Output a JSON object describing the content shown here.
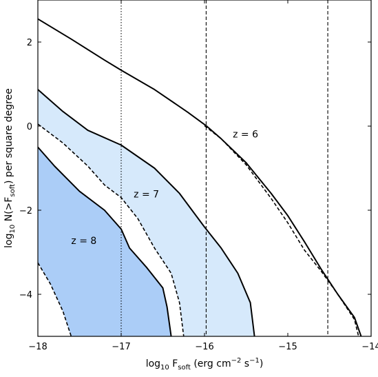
{
  "chart_data": {
    "type": "line",
    "xlim": [
      -18,
      -14
    ],
    "ylim": [
      -5,
      3
    ],
    "x_ticks": [
      -18,
      -17,
      -16,
      -15,
      -14
    ],
    "y_ticks": [
      -4,
      -2,
      0,
      2
    ],
    "xlabel": {
      "main": "log",
      "sub": "10",
      "rest": " F",
      "sub2": "soft",
      "units": "  (erg cm",
      "exp1": "−2",
      "units2": " s",
      "exp2": "−1",
      "close": ")"
    },
    "ylabel": {
      "main": "log",
      "sub": "10",
      "rest": " N(>F",
      "sub2": "soft",
      "close": ")  per square degree"
    },
    "vertical_lines": [
      {
        "x": -17.0,
        "style": "dotted"
      },
      {
        "x": -15.98,
        "style": "dashed"
      },
      {
        "x": -14.52,
        "style": "dashed"
      }
    ],
    "colors": {
      "light_fill": "#d6e9fb",
      "dark_fill": "#abcdf7",
      "curve": "#000000"
    },
    "series": [
      {
        "key": "z6_solid",
        "style": "solid",
        "points": [
          [
            -18,
            2.55
          ],
          [
            -17.6,
            2.07
          ],
          [
            -17.2,
            1.57
          ],
          [
            -17,
            1.33
          ],
          [
            -16.6,
            0.87
          ],
          [
            -16.2,
            0.33
          ],
          [
            -15.98,
            0.01
          ],
          [
            -15.8,
            -0.3
          ],
          [
            -15.5,
            -0.87
          ],
          [
            -15.2,
            -1.6
          ],
          [
            -15,
            -2.13
          ],
          [
            -14.8,
            -2.75
          ],
          [
            -14.6,
            -3.4
          ],
          [
            -14.4,
            -4.0
          ],
          [
            -14.2,
            -4.55
          ],
          [
            -14.12,
            -5.0
          ]
        ]
      },
      {
        "key": "z6_dashed",
        "style": "dashed",
        "points": [
          [
            -16.0,
            0.01
          ],
          [
            -15.8,
            -0.3
          ],
          [
            -15.5,
            -0.92
          ],
          [
            -15.2,
            -1.72
          ],
          [
            -15,
            -2.3
          ],
          [
            -14.8,
            -2.95
          ],
          [
            -14.6,
            -3.45
          ],
          [
            -14.4,
            -4.0
          ],
          [
            -14.2,
            -4.6
          ],
          [
            -14.15,
            -5.0
          ]
        ]
      },
      {
        "key": "z7_upper",
        "style": "solid",
        "points": [
          [
            -18,
            0.87
          ],
          [
            -17.7,
            0.35
          ],
          [
            -17.4,
            -0.1
          ],
          [
            -17,
            -0.45
          ],
          [
            -16.6,
            -1.0
          ],
          [
            -16.3,
            -1.6
          ],
          [
            -16,
            -2.4
          ],
          [
            -15.8,
            -2.9
          ],
          [
            -15.6,
            -3.5
          ],
          [
            -15.45,
            -4.2
          ],
          [
            -15.4,
            -5.0
          ]
        ]
      },
      {
        "key": "z7_lower",
        "style": "dashed",
        "points": [
          [
            -18,
            0.05
          ],
          [
            -17.7,
            -0.4
          ],
          [
            -17.4,
            -0.95
          ],
          [
            -17.2,
            -1.4
          ],
          [
            -17,
            -1.7
          ],
          [
            -16.8,
            -2.2
          ],
          [
            -16.6,
            -2.9
          ],
          [
            -16.4,
            -3.5
          ],
          [
            -16.3,
            -4.2
          ],
          [
            -16.25,
            -5.0
          ]
        ]
      },
      {
        "key": "z8_upper",
        "style": "solid",
        "points": [
          [
            -18,
            -0.5
          ],
          [
            -17.8,
            -0.95
          ],
          [
            -17.5,
            -1.55
          ],
          [
            -17.2,
            -2.0
          ],
          [
            -17,
            -2.45
          ],
          [
            -16.9,
            -2.9
          ],
          [
            -16.7,
            -3.35
          ],
          [
            -16.5,
            -3.85
          ],
          [
            -16.45,
            -4.3
          ],
          [
            -16.4,
            -5.0
          ]
        ]
      },
      {
        "key": "z8_lower",
        "style": "dashed",
        "points": [
          [
            -18,
            -3.25
          ],
          [
            -17.85,
            -3.75
          ],
          [
            -17.7,
            -4.4
          ],
          [
            -17.6,
            -5.0
          ]
        ]
      }
    ],
    "bands": [
      {
        "upper": "z7_upper",
        "lower": "z7_lower",
        "fill": "light"
      },
      {
        "upper": "z8_upper",
        "lower": "z8_lower",
        "fill": "dark"
      }
    ],
    "annotations": [
      {
        "text": "z = 6",
        "x": -15.66,
        "y": -0.27
      },
      {
        "text": "z = 7",
        "x": -16.85,
        "y": -1.7
      },
      {
        "text": "z = 8",
        "x": -17.6,
        "y": -2.8
      }
    ]
  }
}
